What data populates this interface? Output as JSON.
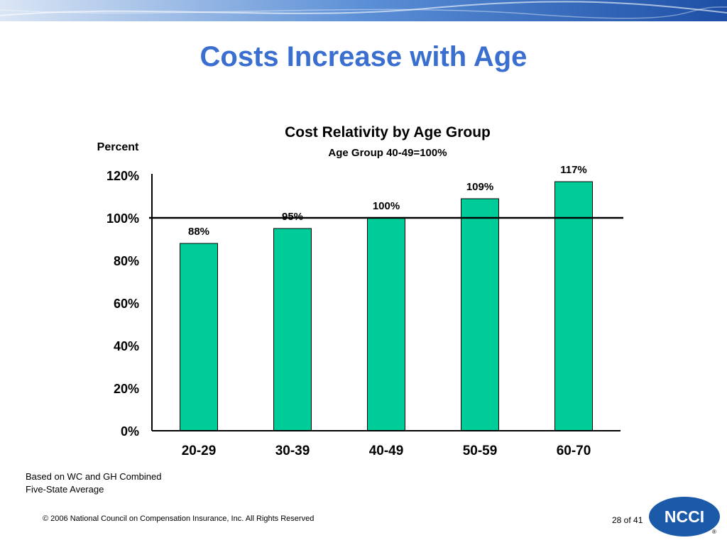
{
  "slide": {
    "title": "Costs Increase with Age",
    "notes": [
      "Based on WC and GH Combined",
      "Five-State Average"
    ],
    "copyright": "© 2006 National Council on Compensation Insurance, Inc. All Rights Reserved",
    "page": "28 of 41",
    "logo_text": "NCCI",
    "logo_mark": "®"
  },
  "colors": {
    "bar": "#00cc99",
    "title": "#3a6fd0",
    "logo": "#1a5aa8"
  },
  "chart_data": {
    "type": "bar",
    "title": "Cost Relativity by Age Group",
    "subtitle": "Age Group 40-49=100%",
    "ylabel": "Percent",
    "xlabel": "",
    "categories": [
      "20-29",
      "30-39",
      "40-49",
      "50-59",
      "60-70"
    ],
    "values": [
      88,
      95,
      100,
      109,
      117
    ],
    "data_labels": [
      "88%",
      "95%",
      "100%",
      "109%",
      "117%"
    ],
    "ylim": [
      0,
      120
    ],
    "y_ticks": [
      0,
      20,
      40,
      60,
      80,
      100,
      120
    ],
    "y_tick_labels": [
      "0%",
      "20%",
      "40%",
      "60%",
      "80%",
      "100%",
      "120%"
    ],
    "reference_line": 100,
    "grid": false,
    "legend": "none"
  }
}
